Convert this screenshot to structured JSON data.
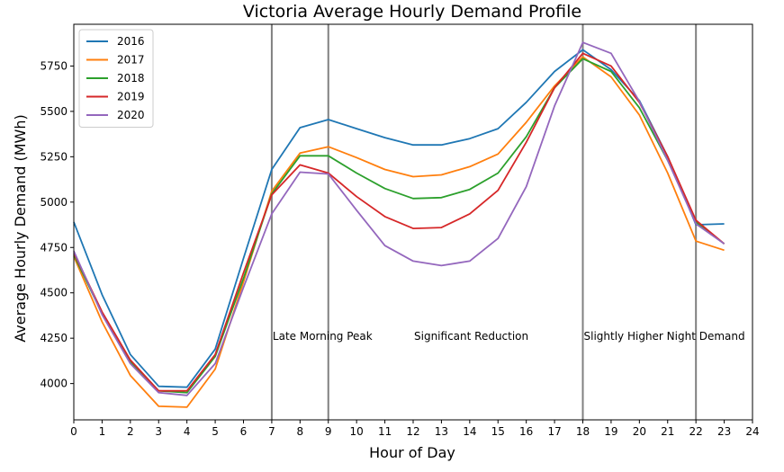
{
  "chart_data": {
    "type": "line",
    "title": "Victoria Average Hourly Demand Profile",
    "xlabel": "Hour of Day",
    "ylabel": "Average Hourly Demand (MWh)",
    "xlim": [
      0,
      24
    ],
    "ylim": [
      3800,
      5980
    ],
    "x_ticks": [
      0,
      1,
      2,
      3,
      4,
      5,
      6,
      7,
      8,
      9,
      10,
      11,
      12,
      13,
      14,
      15,
      16,
      17,
      18,
      19,
      20,
      21,
      22,
      23,
      24
    ],
    "y_ticks": [
      4000,
      4250,
      4500,
      4750,
      5000,
      5250,
      5500,
      5750
    ],
    "grid": false,
    "legend_position": "top-left",
    "x": [
      0,
      1,
      2,
      3,
      4,
      5,
      6,
      7,
      8,
      9,
      10,
      11,
      12,
      13,
      14,
      15,
      16,
      17,
      18,
      19,
      20,
      21,
      22,
      23
    ],
    "series": [
      {
        "name": "2016",
        "color": "#1f77b4",
        "values": [
          4890,
          4490,
          4160,
          3985,
          3980,
          4190,
          4690,
          5180,
          5410,
          5455,
          5405,
          5355,
          5315,
          5315,
          5350,
          5405,
          5550,
          5720,
          5840,
          5730,
          5560,
          5250,
          4875,
          4880
        ]
      },
      {
        "name": "2017",
        "color": "#ff7f0e",
        "values": [
          4700,
          4340,
          4045,
          3875,
          3870,
          4080,
          4560,
          5060,
          5270,
          5305,
          5245,
          5180,
          5140,
          5150,
          5195,
          5265,
          5440,
          5640,
          5800,
          5690,
          5480,
          5160,
          4785,
          4735
        ]
      },
      {
        "name": "2018",
        "color": "#2ca02c",
        "values": [
          4710,
          4385,
          4120,
          3960,
          3950,
          4150,
          4580,
          5045,
          5255,
          5255,
          5160,
          5075,
          5020,
          5025,
          5070,
          5160,
          5360,
          5630,
          5790,
          5720,
          5520,
          5230,
          4890,
          4770
        ]
      },
      {
        "name": "2019",
        "color": "#d62728",
        "values": [
          4720,
          4395,
          4130,
          3960,
          3960,
          4160,
          4610,
          5040,
          5205,
          5160,
          5030,
          4920,
          4855,
          4860,
          4935,
          5065,
          5330,
          5630,
          5820,
          5750,
          5550,
          5250,
          4900,
          4770
        ]
      },
      {
        "name": "2020",
        "color": "#9467bd",
        "values": [
          4730,
          4380,
          4110,
          3950,
          3935,
          4110,
          4530,
          4935,
          5165,
          5155,
          4955,
          4760,
          4675,
          4650,
          4675,
          4800,
          5085,
          5530,
          5880,
          5820,
          5555,
          5230,
          4880,
          4770
        ]
      }
    ],
    "vertical_lines": [
      7,
      9,
      18,
      22
    ],
    "vline_color": "#808080",
    "annotations": [
      {
        "x": 7,
        "y": 4260,
        "text": "Late Morning Peak"
      },
      {
        "x": 12,
        "y": 4260,
        "text": "Significant Reduction"
      },
      {
        "x": 18,
        "y": 4260,
        "text": "Slightly Higher Night Demand"
      }
    ]
  }
}
